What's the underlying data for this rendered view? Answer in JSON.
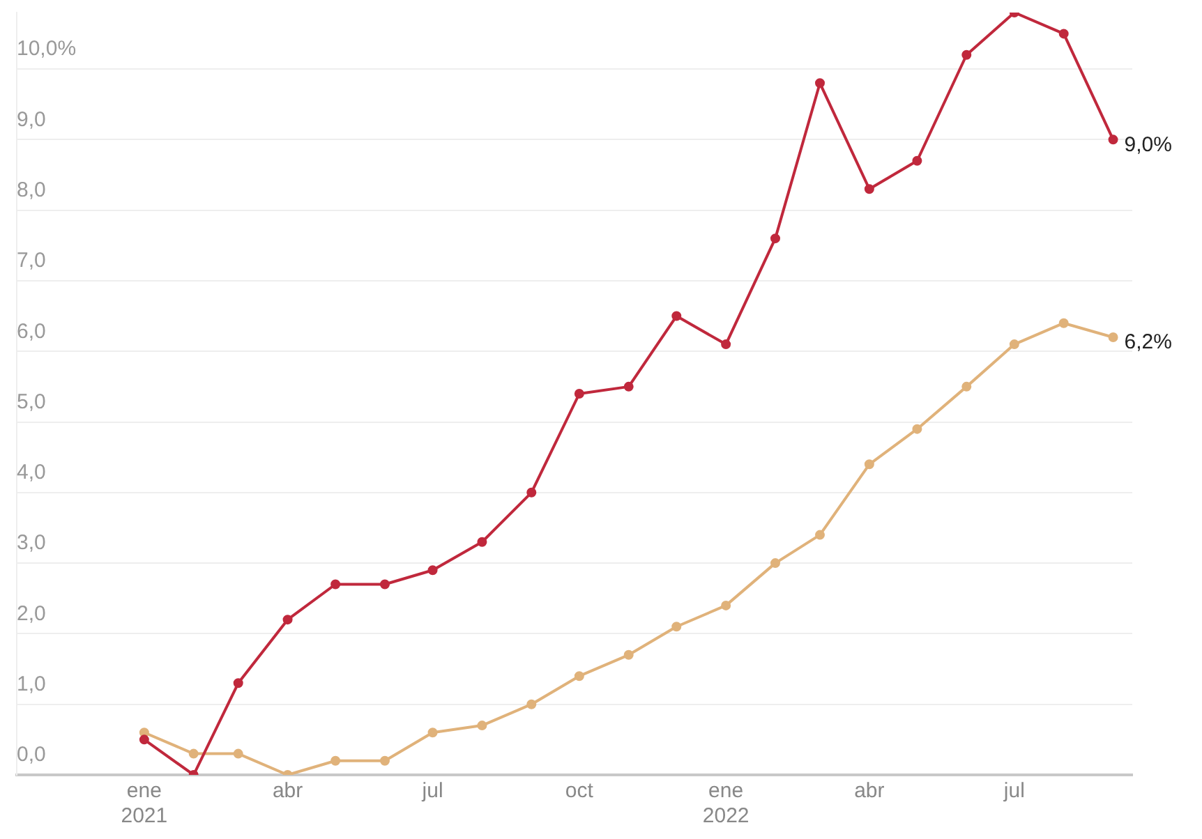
{
  "chart_data": {
    "type": "line",
    "x": [
      "2021-01",
      "2021-02",
      "2021-03",
      "2021-04",
      "2021-05",
      "2021-06",
      "2021-07",
      "2021-08",
      "2021-09",
      "2021-10",
      "2021-11",
      "2021-12",
      "2022-01",
      "2022-02",
      "2022-03",
      "2022-04",
      "2022-05",
      "2022-06",
      "2022-07",
      "2022-08",
      "2022-09"
    ],
    "series": [
      {
        "color": "#c0283c",
        "values": [
          0.5,
          0.0,
          1.3,
          2.2,
          2.7,
          2.7,
          2.9,
          3.3,
          4.0,
          5.4,
          5.5,
          6.5,
          6.1,
          7.6,
          9.8,
          8.3,
          8.7,
          10.2,
          10.8,
          10.5,
          9.0
        ],
        "value_labels": [
          null,
          null,
          null,
          null,
          null,
          null,
          null,
          null,
          null,
          null,
          null,
          null,
          null,
          null,
          null,
          null,
          null,
          null,
          null,
          null,
          "9,0%"
        ]
      },
      {
        "color": "#e0b27a",
        "values": [
          0.6,
          0.3,
          0.3,
          0.0,
          0.2,
          0.2,
          0.6,
          0.7,
          1.0,
          1.4,
          1.7,
          2.1,
          2.4,
          3.0,
          3.4,
          4.4,
          4.9,
          5.5,
          6.1,
          6.4,
          6.2
        ],
        "value_labels": [
          null,
          null,
          null,
          null,
          null,
          null,
          null,
          null,
          null,
          null,
          null,
          null,
          null,
          null,
          null,
          null,
          null,
          null,
          null,
          null,
          "6,2%"
        ]
      }
    ],
    "xlim": [
      "2020-10-13",
      "2022-09-13"
    ],
    "xticks": [
      {
        "value": "2021-01",
        "label": "ene\n2021"
      },
      {
        "value": "2021-04",
        "label": "abr"
      },
      {
        "value": "2021-07",
        "label": "jul"
      },
      {
        "value": "2021-10",
        "label": "oct"
      },
      {
        "value": "2022-01",
        "label": "ene\n2022"
      },
      {
        "value": "2022-04",
        "label": "abr"
      },
      {
        "value": "2022-07",
        "label": "jul"
      }
    ],
    "ylim": [
      0,
      10.8
    ],
    "yticks": [
      {
        "value": 0,
        "label": "0,0"
      },
      {
        "value": 1,
        "label": "1,0"
      },
      {
        "value": 2,
        "label": "2,0"
      },
      {
        "value": 3,
        "label": "3,0"
      },
      {
        "value": 4,
        "label": "4,0"
      },
      {
        "value": 5,
        "label": "5,0"
      },
      {
        "value": 6,
        "label": "6,0"
      },
      {
        "value": 7,
        "label": "7,0"
      },
      {
        "value": 8,
        "label": "8,0"
      },
      {
        "value": 9,
        "label": "9,0"
      },
      {
        "value": 10,
        "label": "10,0%"
      }
    ],
    "grid": "y",
    "legend": false,
    "marker": "circle",
    "line_style": "solid"
  }
}
